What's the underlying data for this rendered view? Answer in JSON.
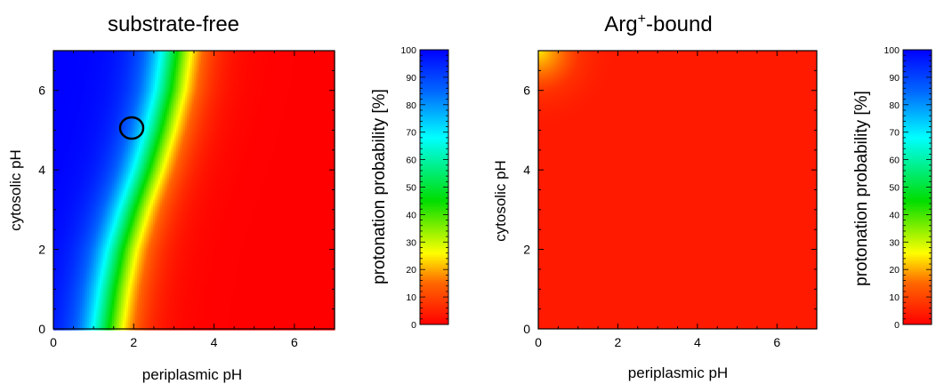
{
  "chart_data": [
    {
      "type": "heatmap",
      "title": "substrate-free",
      "xlabel": "periplasmic pH",
      "ylabel": "cytosolic  pH",
      "xlim": [
        0,
        7
      ],
      "ylim": [
        0,
        7
      ],
      "xticks": [
        "0",
        "2",
        "4",
        "6"
      ],
      "yticks": [
        "0",
        "2",
        "4",
        "6"
      ],
      "transition_50pct_periplasmic_pH": [
        {
          "cytosolic_pH": 0,
          "periplasmic_pH": 1.3
        },
        {
          "cytosolic_pH": 1,
          "periplasmic_pH": 1.45
        },
        {
          "cytosolic_pH": 2,
          "periplasmic_pH": 1.65
        },
        {
          "cytosolic_pH": 3,
          "periplasmic_pH": 1.95
        },
        {
          "cytosolic_pH": 4,
          "periplasmic_pH": 2.3
        },
        {
          "cytosolic_pH": 5,
          "periplasmic_pH": 2.6
        },
        {
          "cytosolic_pH": 6,
          "periplasmic_pH": 2.85
        },
        {
          "cytosolic_pH": 7,
          "periplasmic_pH": 3.0
        }
      ],
      "marker": {
        "shape": "circle",
        "periplasmic_pH": 2.0,
        "cytosolic_pH": 5.0
      },
      "colorbar": {
        "label": "protonation probability [%]",
        "range": [
          0,
          100
        ],
        "ticks": [
          "0",
          "10",
          "20",
          "30",
          "40",
          "50",
          "60",
          "70",
          "80",
          "90",
          "100"
        ],
        "colors": [
          "#ff0000",
          "#ff6600",
          "#ffff00",
          "#00dd00",
          "#00ffff",
          "#0066ff",
          "#0000ff"
        ]
      }
    },
    {
      "type": "heatmap",
      "title_main": "Arg",
      "title_sup": "+",
      "title_rest": "-bound",
      "xlabel": "periplasmic pH",
      "ylabel": "cytosolic  pH",
      "xlim": [
        0,
        7
      ],
      "ylim": [
        0,
        7
      ],
      "xticks": [
        "0",
        "2",
        "4",
        "6"
      ],
      "yticks": [
        "0",
        "2",
        "4",
        "6"
      ],
      "description": "near 0% protonation everywhere, slight yellow/orange glow at top-left corner (periplasmic pH 0, cytosolic pH 7)",
      "colorbar": {
        "label": "protonation probability [%]",
        "range": [
          0,
          100
        ],
        "ticks": [
          "0",
          "10",
          "20",
          "30",
          "40",
          "50",
          "60",
          "70",
          "80",
          "90",
          "100"
        ]
      }
    }
  ]
}
